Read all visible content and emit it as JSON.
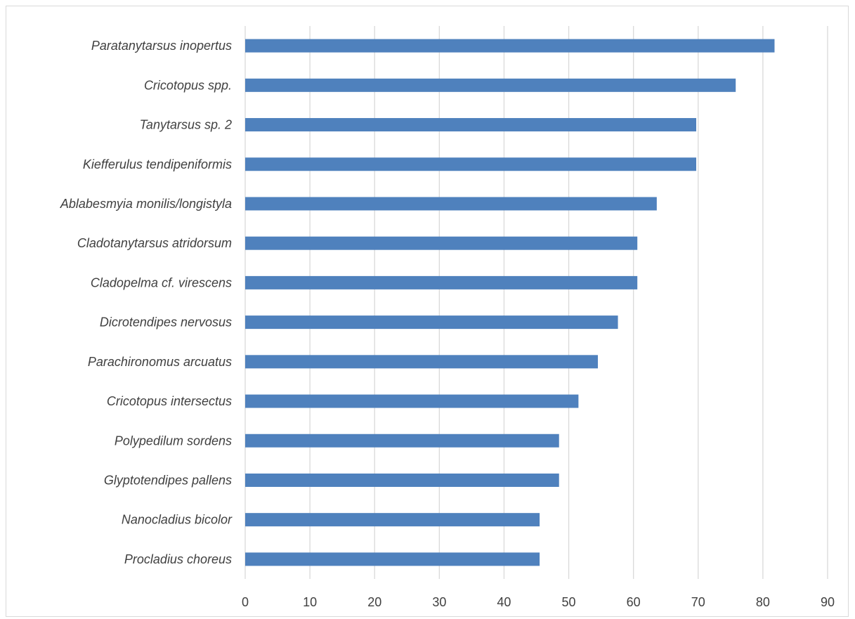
{
  "chart_data": {
    "type": "bar",
    "orientation": "horizontal",
    "categories": [
      "Paratanytarsus inopertus",
      "Cricotopus spp.",
      "Tanytarsus sp. 2",
      "Kiefferulus tendipeniformis",
      "Ablabesmyia monilis/longistyla",
      "Cladotanytarsus atridorsum",
      "Cladopelma cf. virescens",
      "Dicrotendipes nervosus",
      "Parachironomus arcuatus",
      "Cricotopus intersectus",
      "Polypedilum sordens",
      "Glyptotendipes pallens",
      "Nanocladius bicolor",
      "Procladius choreus"
    ],
    "values": [
      81.8,
      75.8,
      69.7,
      69.7,
      63.6,
      60.6,
      60.6,
      57.6,
      54.5,
      51.5,
      48.5,
      48.5,
      45.5,
      45.5
    ],
    "xlim": [
      0,
      90
    ],
    "xticks": [
      "0",
      "10",
      "20",
      "30",
      "40",
      "50",
      "60",
      "70",
      "80",
      "90"
    ],
    "grid": "vertical",
    "legend": "none",
    "bar_color": "#4f81bd"
  }
}
